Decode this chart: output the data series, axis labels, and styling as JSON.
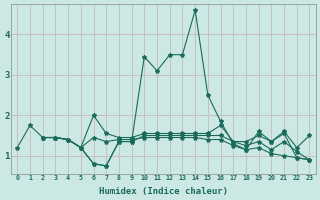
{
  "xlabel": "Humidex (Indice chaleur)",
  "bg_color": "#cce8e4",
  "grid_color": "#c8b8b8",
  "line_color": "#1a6b5a",
  "xlim": [
    -0.5,
    23.5
  ],
  "ylim": [
    0.55,
    4.75
  ],
  "xticks": [
    0,
    1,
    2,
    3,
    4,
    5,
    6,
    7,
    8,
    9,
    10,
    11,
    12,
    13,
    14,
    15,
    16,
    17,
    18,
    19,
    20,
    21,
    22,
    23
  ],
  "yticks": [
    1,
    2,
    3,
    4
  ],
  "line1_x": [
    0,
    1,
    2,
    3,
    4,
    5,
    6,
    7,
    8,
    9,
    10,
    11,
    12,
    13,
    14,
    15,
    16,
    17,
    18,
    19,
    20,
    21,
    22,
    23
  ],
  "line1_y": [
    1.2,
    1.75,
    1.45,
    1.45,
    1.4,
    1.2,
    0.8,
    0.75,
    1.35,
    1.35,
    3.45,
    3.1,
    3.5,
    3.5,
    4.6,
    2.5,
    1.85,
    1.3,
    1.15,
    1.6,
    1.35,
    1.55,
    0.95,
    0.9
  ],
  "line2_x": [
    2,
    3,
    4,
    5,
    6,
    7,
    8,
    9,
    10,
    11,
    12,
    13,
    14,
    15,
    16,
    17,
    18,
    19,
    20,
    21,
    22,
    23
  ],
  "line2_y": [
    1.45,
    1.45,
    1.4,
    1.2,
    2.0,
    1.55,
    1.45,
    1.45,
    1.55,
    1.55,
    1.55,
    1.55,
    1.55,
    1.55,
    1.75,
    1.35,
    1.35,
    1.5,
    1.35,
    1.6,
    1.2,
    1.5
  ],
  "line3_x": [
    2,
    3,
    4,
    5,
    6,
    7,
    8,
    9,
    10,
    11,
    12,
    13,
    14,
    15,
    16,
    17,
    18,
    19,
    20,
    21,
    22,
    23
  ],
  "line3_y": [
    1.45,
    1.45,
    1.4,
    1.2,
    0.8,
    0.75,
    1.35,
    1.35,
    1.5,
    1.5,
    1.5,
    1.5,
    1.5,
    1.5,
    1.5,
    1.35,
    1.25,
    1.35,
    1.15,
    1.35,
    1.1,
    0.9
  ],
  "line4_x": [
    2,
    3,
    4,
    5,
    6,
    7,
    8,
    9,
    10,
    11,
    12,
    13,
    14,
    15,
    16,
    17,
    18,
    19,
    20,
    21,
    22,
    23
  ],
  "line4_y": [
    1.45,
    1.45,
    1.4,
    1.2,
    1.45,
    1.35,
    1.4,
    1.4,
    1.45,
    1.45,
    1.45,
    1.45,
    1.45,
    1.4,
    1.4,
    1.25,
    1.15,
    1.2,
    1.05,
    1.0,
    0.95,
    0.9
  ]
}
